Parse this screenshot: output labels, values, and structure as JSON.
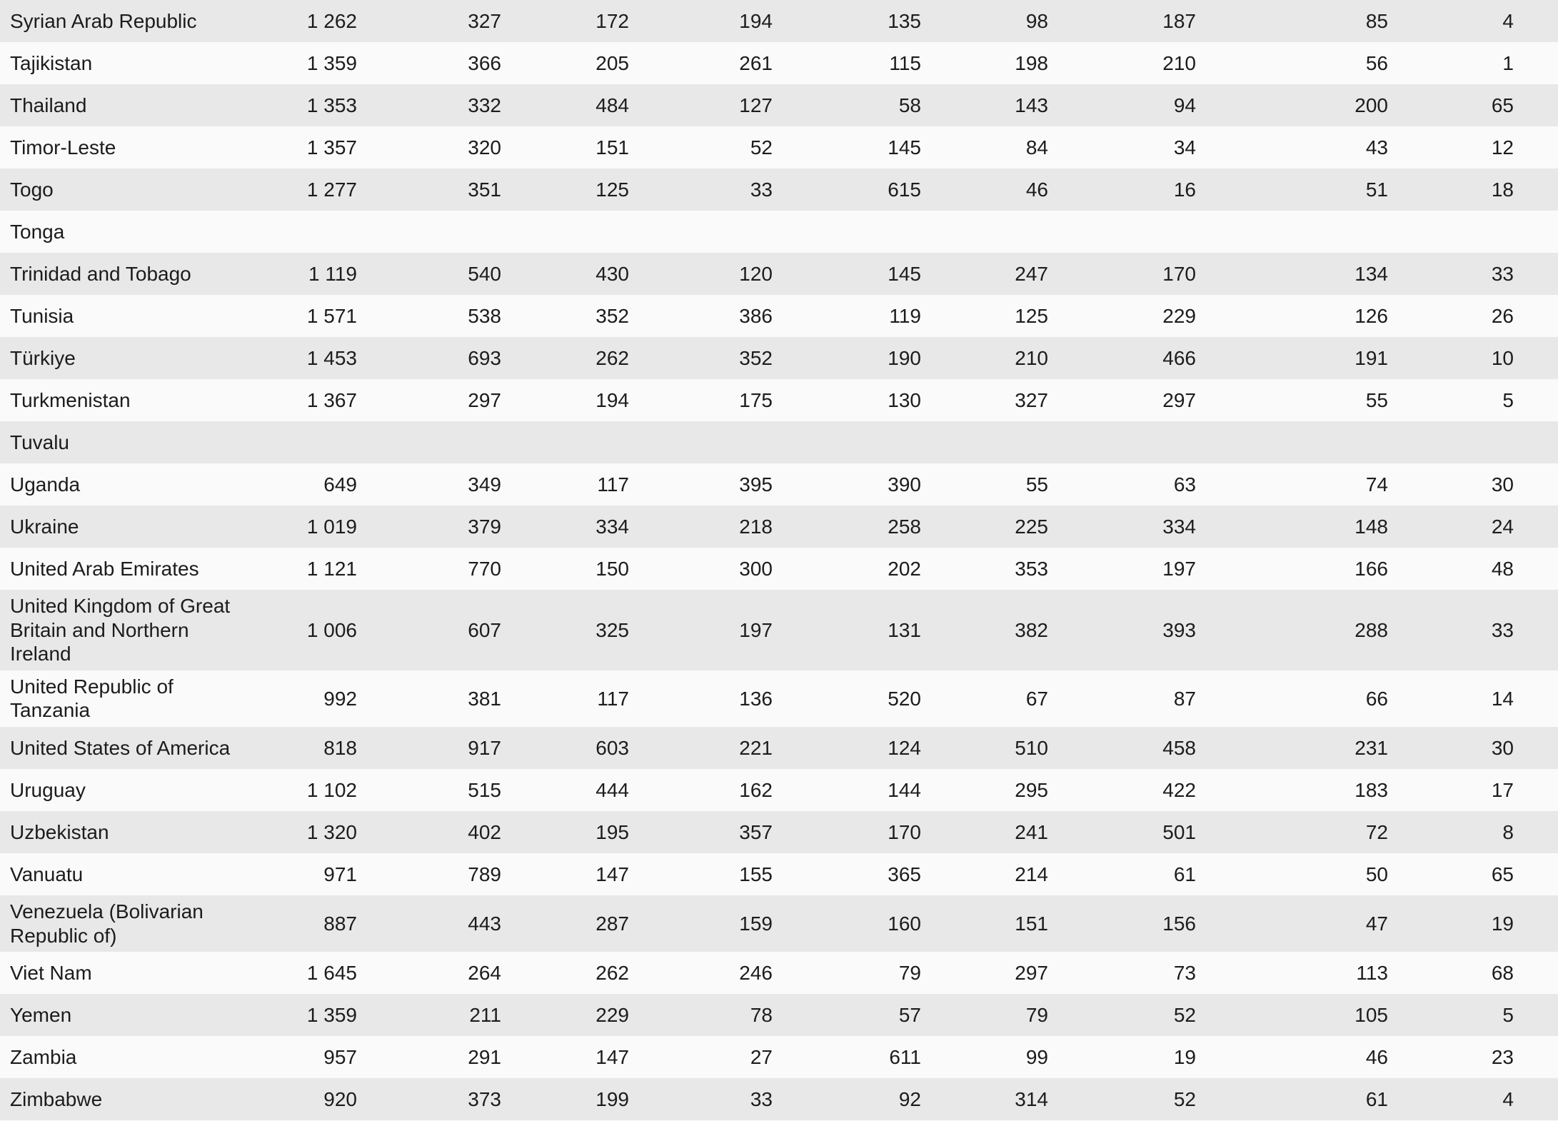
{
  "table": {
    "stripe_color_even": "#e8e8e8",
    "stripe_color_odd": "#fafafa",
    "text_color": "#1c1c1c",
    "rows": [
      {
        "country": "Syrian Arab Republic",
        "values": [
          "1 262",
          "327",
          "172",
          "194",
          "135",
          "98",
          "187",
          "85",
          "4"
        ]
      },
      {
        "country": "Tajikistan",
        "values": [
          "1 359",
          "366",
          "205",
          "261",
          "115",
          "198",
          "210",
          "56",
          "1"
        ]
      },
      {
        "country": "Thailand",
        "values": [
          "1 353",
          "332",
          "484",
          "127",
          "58",
          "143",
          "94",
          "200",
          "65"
        ]
      },
      {
        "country": "Timor-Leste",
        "values": [
          "1 357",
          "320",
          "151",
          "52",
          "145",
          "84",
          "34",
          "43",
          "12"
        ]
      },
      {
        "country": "Togo",
        "values": [
          "1 277",
          "351",
          "125",
          "33",
          "615",
          "46",
          "16",
          "51",
          "18"
        ]
      },
      {
        "country": "Tonga",
        "values": [
          "",
          "",
          "",
          "",
          "",
          "",
          "",
          "",
          ""
        ]
      },
      {
        "country": "Trinidad and Tobago",
        "values": [
          "1 119",
          "540",
          "430",
          "120",
          "145",
          "247",
          "170",
          "134",
          "33"
        ]
      },
      {
        "country": "Tunisia",
        "values": [
          "1 571",
          "538",
          "352",
          "386",
          "119",
          "125",
          "229",
          "126",
          "26"
        ]
      },
      {
        "country": "Türkiye",
        "values": [
          "1 453",
          "693",
          "262",
          "352",
          "190",
          "210",
          "466",
          "191",
          "10"
        ]
      },
      {
        "country": "Turkmenistan",
        "values": [
          "1 367",
          "297",
          "194",
          "175",
          "130",
          "327",
          "297",
          "55",
          "5"
        ]
      },
      {
        "country": "Tuvalu",
        "values": [
          "",
          "",
          "",
          "",
          "",
          "",
          "",
          "",
          ""
        ]
      },
      {
        "country": "Uganda",
        "values": [
          "649",
          "349",
          "117",
          "395",
          "390",
          "55",
          "63",
          "74",
          "30"
        ]
      },
      {
        "country": "Ukraine",
        "values": [
          "1 019",
          "379",
          "334",
          "218",
          "258",
          "225",
          "334",
          "148",
          "24"
        ]
      },
      {
        "country": "United Arab Emirates",
        "values": [
          "1 121",
          "770",
          "150",
          "300",
          "202",
          "353",
          "197",
          "166",
          "48"
        ]
      },
      {
        "country": "United Kingdom of Great Britain and Northern Ireland",
        "values": [
          "1 006",
          "607",
          "325",
          "197",
          "131",
          "382",
          "393",
          "288",
          "33"
        ]
      },
      {
        "country": "United Republic of Tanzania",
        "values": [
          "992",
          "381",
          "117",
          "136",
          "520",
          "67",
          "87",
          "66",
          "14"
        ]
      },
      {
        "country": "United States of America",
        "values": [
          "818",
          "917",
          "603",
          "221",
          "124",
          "510",
          "458",
          "231",
          "30"
        ]
      },
      {
        "country": "Uruguay",
        "values": [
          "1 102",
          "515",
          "444",
          "162",
          "144",
          "295",
          "422",
          "183",
          "17"
        ]
      },
      {
        "country": "Uzbekistan",
        "values": [
          "1 320",
          "402",
          "195",
          "357",
          "170",
          "241",
          "501",
          "72",
          "8"
        ]
      },
      {
        "country": "Vanuatu",
        "values": [
          "971",
          "789",
          "147",
          "155",
          "365",
          "214",
          "61",
          "50",
          "65"
        ]
      },
      {
        "country": "Venezuela (Bolivarian Republic of)",
        "values": [
          "887",
          "443",
          "287",
          "159",
          "160",
          "151",
          "156",
          "47",
          "19"
        ]
      },
      {
        "country": "Viet Nam",
        "values": [
          "1 645",
          "264",
          "262",
          "246",
          "79",
          "297",
          "73",
          "113",
          "68"
        ]
      },
      {
        "country": "Yemen",
        "values": [
          "1 359",
          "211",
          "229",
          "78",
          "57",
          "79",
          "52",
          "105",
          "5"
        ]
      },
      {
        "country": "Zambia",
        "values": [
          "957",
          "291",
          "147",
          "27",
          "611",
          "99",
          "19",
          "46",
          "23"
        ]
      },
      {
        "country": "Zimbabwe",
        "values": [
          "920",
          "373",
          "199",
          "33",
          "92",
          "314",
          "52",
          "61",
          "4"
        ]
      }
    ]
  }
}
